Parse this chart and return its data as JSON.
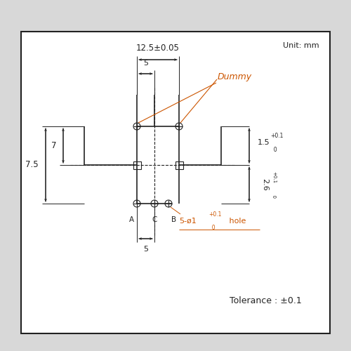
{
  "fig_width": 5.0,
  "fig_height": 5.0,
  "dpi": 100,
  "bg_color": "#d8d8d8",
  "box_facecolor": "#ffffff",
  "box_edgecolor": "#222222",
  "line_color": "#222222",
  "orange_color": "#cc5500",
  "unit_text": "Unit: mm",
  "tolerance_text": "Tolerance : ±0.1",
  "dummy_text": "Dummy",
  "label_A": "A",
  "label_C": "C",
  "label_B": "B"
}
